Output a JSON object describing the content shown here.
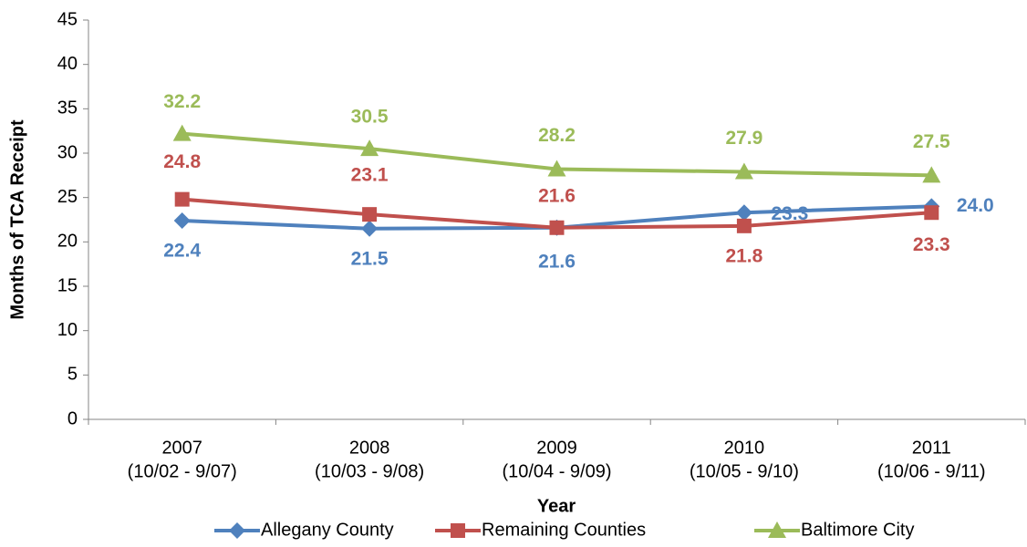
{
  "chart_data": {
    "type": "line",
    "y_label": "Months of TCA Receipt",
    "x_label": "Year",
    "categories": [
      "2007",
      "2008",
      "2009",
      "2010",
      "2011"
    ],
    "category_periods": [
      "(10/02 - 9/07)",
      "(10/03 - 9/08)",
      "(10/04 - 9/09)",
      "(10/05 - 9/10)",
      "(10/06 - 9/11)"
    ],
    "series": [
      {
        "name": "Allegany County",
        "color": "#4f81bd",
        "marker": "diamond",
        "values": [
          22.4,
          21.5,
          21.6,
          23.3,
          24.0
        ],
        "value_labels": [
          "22.4",
          "21.5",
          "21.6",
          "23.3",
          "24.0"
        ]
      },
      {
        "name": "Remaining Counties",
        "color": "#c0504d",
        "marker": "square",
        "values": [
          24.8,
          23.1,
          21.6,
          21.8,
          23.3
        ],
        "value_labels": [
          "24.8",
          "23.1",
          "21.6",
          "21.8",
          "23.3"
        ]
      },
      {
        "name": "Baltimore City",
        "color": "#9bbb59",
        "marker": "triangle",
        "values": [
          32.2,
          30.5,
          28.2,
          27.9,
          27.5
        ],
        "value_labels": [
          "32.2",
          "30.5",
          "28.2",
          "27.9",
          "27.5"
        ]
      }
    ],
    "ylim": [
      0,
      45
    ],
    "yticks": [
      0,
      5,
      10,
      15,
      20,
      25,
      30,
      35,
      40,
      45
    ],
    "grid": false,
    "legend": "bottom"
  }
}
